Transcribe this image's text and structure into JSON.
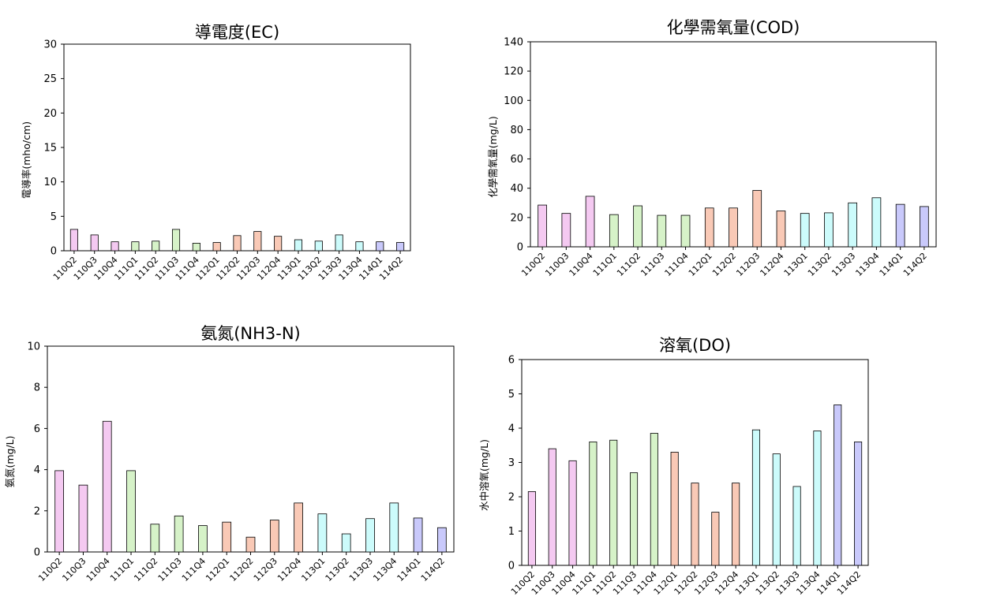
{
  "chart_data": [
    {
      "type": "bar",
      "title": "導電度(EC)",
      "ylabel": "電導率(mho/cm)",
      "ylim": [
        0,
        30
      ],
      "yticks": [
        0,
        5,
        10,
        15,
        20,
        25,
        30
      ],
      "grid": false,
      "categories": [
        "110Q2",
        "110Q3",
        "110Q4",
        "111Q1",
        "111Q2",
        "111Q3",
        "111Q4",
        "112Q1",
        "112Q2",
        "112Q3",
        "112Q4",
        "113Q1",
        "113Q2",
        "113Q3",
        "113Q4",
        "114Q1",
        "114Q2"
      ],
      "values": [
        3.1,
        2.3,
        1.3,
        1.3,
        1.4,
        3.1,
        1.1,
        1.2,
        2.2,
        2.8,
        2.1,
        1.6,
        1.4,
        2.3,
        1.3,
        1.3,
        1.2
      ],
      "colors": [
        "#f4c9f1",
        "#f4c9f1",
        "#f4c9f1",
        "#d6f2c8",
        "#d6f2c8",
        "#d6f2c8",
        "#d6f2c8",
        "#f9c9b6",
        "#f9c9b6",
        "#f9c9b6",
        "#f9c9b6",
        "#ccfbfb",
        "#ccfbfb",
        "#ccfbfb",
        "#ccfbfb",
        "#c9c9fb",
        "#c9c9fb"
      ]
    },
    {
      "type": "bar",
      "title": "化學需氧量(COD)",
      "ylabel": "化學需氧量(mg/L)",
      "ylim": [
        0,
        140
      ],
      "yticks": [
        0,
        20,
        40,
        60,
        80,
        100,
        120,
        140
      ],
      "grid": false,
      "categories": [
        "110Q2",
        "110Q3",
        "110Q4",
        "111Q1",
        "111Q2",
        "111Q3",
        "111Q4",
        "112Q1",
        "112Q2",
        "112Q3",
        "112Q4",
        "113Q1",
        "113Q2",
        "113Q3",
        "113Q4",
        "114Q1",
        "114Q2"
      ],
      "values": [
        28.5,
        22.8,
        34.5,
        22,
        28,
        21.5,
        21.5,
        26.5,
        26.5,
        38.5,
        24.5,
        22.8,
        23.2,
        30,
        33.5,
        29,
        27.5
      ],
      "colors": [
        "#f4c9f1",
        "#f4c9f1",
        "#f4c9f1",
        "#d6f2c8",
        "#d6f2c8",
        "#d6f2c8",
        "#d6f2c8",
        "#f9c9b6",
        "#f9c9b6",
        "#f9c9b6",
        "#f9c9b6",
        "#ccfbfb",
        "#ccfbfb",
        "#ccfbfb",
        "#ccfbfb",
        "#c9c9fb",
        "#c9c9fb"
      ]
    },
    {
      "type": "bar",
      "title": "氨氮(NH3-N)",
      "ylabel": "氨氮(mg/L)",
      "ylim": [
        0,
        10
      ],
      "yticks": [
        0,
        2,
        4,
        6,
        8,
        10
      ],
      "grid": false,
      "categories": [
        "110Q2",
        "110Q3",
        "110Q4",
        "111Q1",
        "111Q2",
        "111Q3",
        "111Q4",
        "112Q1",
        "112Q2",
        "112Q3",
        "112Q4",
        "113Q1",
        "113Q2",
        "113Q3",
        "113Q4",
        "114Q1",
        "114Q2"
      ],
      "values": [
        3.95,
        3.25,
        6.35,
        3.95,
        1.35,
        1.75,
        1.28,
        1.45,
        0.72,
        1.55,
        2.38,
        1.85,
        0.88,
        1.62,
        2.38,
        1.65,
        1.18
      ],
      "colors": [
        "#f4c9f1",
        "#f4c9f1",
        "#f4c9f1",
        "#d6f2c8",
        "#d6f2c8",
        "#d6f2c8",
        "#d6f2c8",
        "#f9c9b6",
        "#f9c9b6",
        "#f9c9b6",
        "#f9c9b6",
        "#ccfbfb",
        "#ccfbfb",
        "#ccfbfb",
        "#ccfbfb",
        "#c9c9fb",
        "#c9c9fb"
      ]
    },
    {
      "type": "bar",
      "title": "溶氧(DO)",
      "ylabel": "水中溶氧(mg/L)",
      "ylim": [
        0,
        6
      ],
      "yticks": [
        0,
        1,
        2,
        3,
        4,
        5,
        6
      ],
      "grid": false,
      "categories": [
        "110Q2",
        "110Q3",
        "110Q4",
        "111Q1",
        "111Q2",
        "111Q3",
        "111Q4",
        "112Q1",
        "112Q2",
        "112Q3",
        "112Q4",
        "113Q1",
        "113Q2",
        "113Q3",
        "113Q4",
        "114Q1",
        "114Q2"
      ],
      "values": [
        2.15,
        3.4,
        3.05,
        3.6,
        3.65,
        2.7,
        3.85,
        3.3,
        2.4,
        1.55,
        2.4,
        3.95,
        3.25,
        2.3,
        3.92,
        4.68,
        3.6
      ],
      "colors": [
        "#f4c9f1",
        "#f4c9f1",
        "#f4c9f1",
        "#d6f2c8",
        "#d6f2c8",
        "#d6f2c8",
        "#d6f2c8",
        "#f9c9b6",
        "#f9c9b6",
        "#f9c9b6",
        "#f9c9b6",
        "#ccfbfb",
        "#ccfbfb",
        "#ccfbfb",
        "#ccfbfb",
        "#c9c9fb",
        "#c9c9fb"
      ]
    }
  ]
}
